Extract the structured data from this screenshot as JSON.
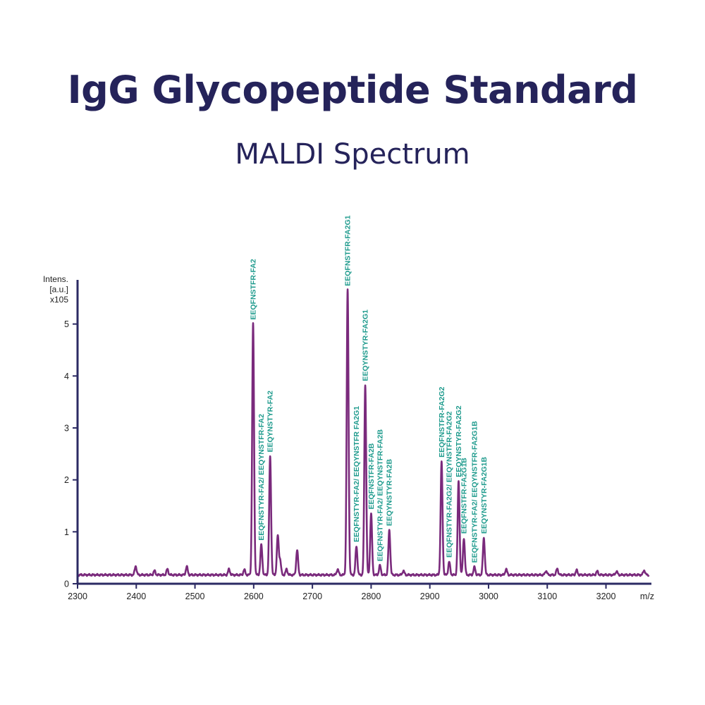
{
  "colors": {
    "title": "#25235a",
    "spectrum": "#7a2a7c",
    "axis": "#2b2a63",
    "label": "#1d9a8c"
  },
  "chart_data": {
    "type": "line",
    "title": "IgG Glycopeptide Standard",
    "subtitle": "MALDI Spectrum",
    "xlabel": "m/z",
    "ylabel_lines": [
      "Intens.",
      "[a.u.]",
      "x105"
    ],
    "xlim": [
      2300,
      3275
    ],
    "ylim": [
      0,
      5.85
    ],
    "x_ticks": [
      2300,
      2400,
      2500,
      2600,
      2700,
      2800,
      2900,
      3000,
      3100,
      3200
    ],
    "y_ticks": [
      0,
      1,
      2,
      3,
      4,
      5
    ],
    "baseline": 0.17,
    "peaks": [
      {
        "x": 2399,
        "y": 0.34
      },
      {
        "x": 2431,
        "y": 0.25
      },
      {
        "x": 2453,
        "y": 0.28
      },
      {
        "x": 2486,
        "y": 0.33
      },
      {
        "x": 2558,
        "y": 0.28
      },
      {
        "x": 2584,
        "y": 0.27
      },
      {
        "x": 2599,
        "y": 5.0
      },
      {
        "x": 2613,
        "y": 0.75
      },
      {
        "x": 2628,
        "y": 2.45
      },
      {
        "x": 2641,
        "y": 0.92
      },
      {
        "x": 2645,
        "y": 0.45
      },
      {
        "x": 2656,
        "y": 0.28
      },
      {
        "x": 2674,
        "y": 0.65
      },
      {
        "x": 2743,
        "y": 0.28
      },
      {
        "x": 2760,
        "y": 5.65
      },
      {
        "x": 2775,
        "y": 0.72
      },
      {
        "x": 2790,
        "y": 3.82
      },
      {
        "x": 2800,
        "y": 1.35
      },
      {
        "x": 2815,
        "y": 0.35
      },
      {
        "x": 2831,
        "y": 1.03
      },
      {
        "x": 2855,
        "y": 0.25
      },
      {
        "x": 2920,
        "y": 2.35
      },
      {
        "x": 2933,
        "y": 0.42
      },
      {
        "x": 2949,
        "y": 1.97
      },
      {
        "x": 2958,
        "y": 0.88
      },
      {
        "x": 2976,
        "y": 0.32
      },
      {
        "x": 2992,
        "y": 0.88
      },
      {
        "x": 3030,
        "y": 0.28
      },
      {
        "x": 3098,
        "y": 0.25
      },
      {
        "x": 3117,
        "y": 0.29
      },
      {
        "x": 3150,
        "y": 0.26
      },
      {
        "x": 3185,
        "y": 0.24
      },
      {
        "x": 3218,
        "y": 0.24
      },
      {
        "x": 3265,
        "y": 0.26
      }
    ],
    "annotations": [
      {
        "text": "EEQFNSTFR-FA2",
        "x": 2599,
        "y": 5.0
      },
      {
        "text": "EEQFNSTYR-FA2/ EEQYNSTFR-FA2",
        "x": 2613,
        "y": 0.75
      },
      {
        "text": "EEQYNSTYR-FA2",
        "x": 2628,
        "y": 2.45
      },
      {
        "text": "EEQFNSTFR-FA2G1",
        "x": 2760,
        "y": 5.65
      },
      {
        "text": "EEQFNSTYR-FA2/ EEQYNSTFR FA2G1",
        "x": 2775,
        "y": 0.72
      },
      {
        "text": "EEQYNSTYR-FA2G1",
        "x": 2790,
        "y": 3.82
      },
      {
        "text": "EEQFNSTFR-FA2B",
        "x": 2800,
        "y": 1.35
      },
      {
        "text": "EEQFNSTYR-FA2/ EEQYNSTFR-FA2B",
        "x": 2815,
        "y": 0.35
      },
      {
        "text": "EEQYNSTYR-FA2B",
        "x": 2831,
        "y": 1.03
      },
      {
        "text": "EEQFNSTFR-FA2G2",
        "x": 2920,
        "y": 2.35
      },
      {
        "text": "EEQFNSTYR-FA2G2/ EEQYNSTFR-FA2G2",
        "x": 2933,
        "y": 0.42
      },
      {
        "text": "EEQYNSTYR-FA2G2",
        "x": 2949,
        "y": 1.97
      },
      {
        "text": "EEQFNSTFR-FA2G1B",
        "x": 2958,
        "y": 0.88
      },
      {
        "text": "EEQFNSTYR-FA2/ EEQYNSTFR-FA2G1B",
        "x": 2976,
        "y": 0.32
      },
      {
        "text": "EEQYNSTYR-FA2G1B",
        "x": 2992,
        "y": 0.88
      }
    ]
  }
}
